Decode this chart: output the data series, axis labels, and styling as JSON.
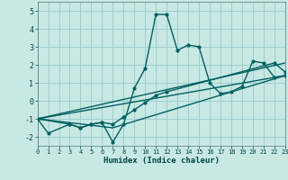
{
  "xlabel": "Humidex (Indice chaleur)",
  "bg_color": "#c8e8e4",
  "grid_color": "#9ecece",
  "line_color": "#006060",
  "xlim": [
    0,
    23
  ],
  "ylim": [
    -2.5,
    5.5
  ],
  "xticks": [
    0,
    1,
    2,
    3,
    4,
    5,
    6,
    7,
    8,
    9,
    10,
    11,
    12,
    13,
    14,
    15,
    16,
    17,
    18,
    19,
    20,
    21,
    22,
    23
  ],
  "yticks": [
    -2,
    -1,
    0,
    1,
    2,
    3,
    4,
    5
  ],
  "line1_x": [
    0,
    1,
    3,
    4,
    5,
    6,
    7,
    8,
    9,
    10,
    11,
    12,
    13,
    14,
    15,
    16,
    17,
    18,
    19,
    20,
    21,
    22,
    23
  ],
  "line1_y": [
    -1.0,
    -1.8,
    -1.3,
    -1.5,
    -1.3,
    -1.2,
    -2.3,
    -1.3,
    0.7,
    1.8,
    4.8,
    4.8,
    2.8,
    3.1,
    3.0,
    1.0,
    0.4,
    0.5,
    0.8,
    2.2,
    2.1,
    1.3,
    1.4
  ],
  "line2_x": [
    0,
    3,
    4,
    5,
    6,
    7,
    8,
    9,
    10,
    11,
    12,
    22,
    23
  ],
  "line2_y": [
    -1.0,
    -1.3,
    -1.5,
    -1.3,
    -1.2,
    -1.3,
    -0.9,
    -0.5,
    -0.1,
    0.3,
    0.5,
    2.1,
    1.6
  ],
  "line3_x": [
    0,
    23
  ],
  "line3_y": [
    -1.0,
    2.1
  ],
  "line4_x": [
    0,
    7,
    23
  ],
  "line4_y": [
    -1.0,
    -1.5,
    1.4
  ],
  "line5_x": [
    0,
    23
  ],
  "line5_y": [
    -1.0,
    1.4
  ]
}
